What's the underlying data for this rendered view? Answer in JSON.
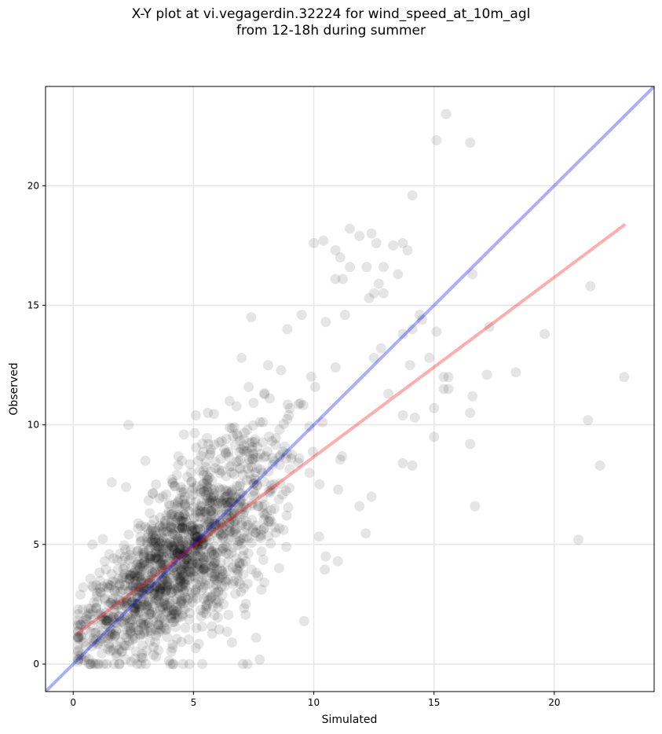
{
  "title_line1": "X-Y plot at vi.vegagerdin.32224 for wind_speed_at_10m_agl",
  "title_line2": "from 12-18h during summer",
  "chart_data": {
    "type": "scatter",
    "title": "X-Y plot at vi.vegagerdin.32224 for wind_speed_at_10m_agl from 12-18h during summer",
    "xlabel": "Simulated",
    "ylabel": "Observed",
    "xlim": [
      -1.15,
      24.15
    ],
    "ylim": [
      -1.15,
      24.15
    ],
    "xticks": [
      0,
      5,
      10,
      15,
      20
    ],
    "yticks": [
      0,
      5,
      10,
      15,
      20
    ],
    "xtick_labels": [
      "0",
      "5",
      "10",
      "15",
      "20"
    ],
    "ytick_labels": [
      "0",
      "5",
      "10",
      "15",
      "20"
    ],
    "grid": true,
    "point_color": "#000000",
    "point_alpha": 0.1,
    "lines": [
      {
        "kind": "identity",
        "x": [
          -1.15,
          24.15
        ],
        "y": [
          -1.15,
          24.15
        ],
        "color": "#0000ff",
        "alpha": 0.32
      },
      {
        "kind": "regression",
        "x": [
          0.2,
          22.9
        ],
        "y": [
          1.3,
          18.35
        ],
        "color": "#ff0000",
        "alpha": 0.32
      }
    ],
    "points_outliers": [
      {
        "x": 15.5,
        "y": 23.0
      },
      {
        "x": 15.1,
        "y": 21.9
      },
      {
        "x": 16.5,
        "y": 21.8
      },
      {
        "x": 14.1,
        "y": 19.6
      },
      {
        "x": 11.5,
        "y": 18.2
      },
      {
        "x": 12.4,
        "y": 18.0
      },
      {
        "x": 11.9,
        "y": 17.9
      },
      {
        "x": 10.0,
        "y": 17.6
      },
      {
        "x": 10.4,
        "y": 17.7
      },
      {
        "x": 12.6,
        "y": 17.6
      },
      {
        "x": 13.3,
        "y": 17.5
      },
      {
        "x": 13.7,
        "y": 17.6
      },
      {
        "x": 13.9,
        "y": 17.3
      },
      {
        "x": 10.9,
        "y": 17.3
      },
      {
        "x": 11.1,
        "y": 17.0
      },
      {
        "x": 11.5,
        "y": 16.6
      },
      {
        "x": 12.2,
        "y": 16.6
      },
      {
        "x": 12.9,
        "y": 16.6
      },
      {
        "x": 10.9,
        "y": 16.1
      },
      {
        "x": 11.2,
        "y": 16.1
      },
      {
        "x": 13.5,
        "y": 16.3
      },
      {
        "x": 16.6,
        "y": 16.3
      },
      {
        "x": 12.7,
        "y": 15.9
      },
      {
        "x": 21.5,
        "y": 15.8
      },
      {
        "x": 12.5,
        "y": 15.5
      },
      {
        "x": 12.9,
        "y": 15.5
      },
      {
        "x": 12.3,
        "y": 15.3
      },
      {
        "x": 14.5,
        "y": 14.4
      },
      {
        "x": 17.3,
        "y": 14.1
      },
      {
        "x": 19.6,
        "y": 13.8
      },
      {
        "x": 15.1,
        "y": 13.9
      },
      {
        "x": 13.7,
        "y": 13.8
      },
      {
        "x": 14.1,
        "y": 14.0
      },
      {
        "x": 14.8,
        "y": 12.8
      },
      {
        "x": 15.4,
        "y": 12.0
      },
      {
        "x": 15.6,
        "y": 12.0
      },
      {
        "x": 17.2,
        "y": 12.1
      },
      {
        "x": 18.4,
        "y": 12.2
      },
      {
        "x": 16.6,
        "y": 11.2
      },
      {
        "x": 22.9,
        "y": 12.0
      },
      {
        "x": 15.4,
        "y": 11.5
      },
      {
        "x": 15.6,
        "y": 11.5
      },
      {
        "x": 14.0,
        "y": 12.5
      },
      {
        "x": 15.0,
        "y": 10.7
      },
      {
        "x": 16.5,
        "y": 10.5
      },
      {
        "x": 13.7,
        "y": 10.4
      },
      {
        "x": 14.2,
        "y": 10.3
      },
      {
        "x": 15.0,
        "y": 9.5
      },
      {
        "x": 16.5,
        "y": 9.2
      },
      {
        "x": 21.4,
        "y": 10.2
      },
      {
        "x": 13.7,
        "y": 8.4
      },
      {
        "x": 14.1,
        "y": 8.3
      },
      {
        "x": 21.9,
        "y": 8.3
      },
      {
        "x": 16.7,
        "y": 6.6
      },
      {
        "x": 21.0,
        "y": 5.2
      },
      {
        "x": 14.4,
        "y": 14.6
      },
      {
        "x": 13.1,
        "y": 11.3
      },
      {
        "x": 12.5,
        "y": 12.8
      },
      {
        "x": 12.8,
        "y": 13.2
      },
      {
        "x": 11.3,
        "y": 14.6
      },
      {
        "x": 10.5,
        "y": 14.3
      },
      {
        "x": 9.5,
        "y": 14.6
      },
      {
        "x": 8.9,
        "y": 14.0
      },
      {
        "x": 7.4,
        "y": 14.5
      },
      {
        "x": 2.3,
        "y": 10.0
      },
      {
        "x": 6.6,
        "y": 0.9
      },
      {
        "x": 7.6,
        "y": 1.1
      },
      {
        "x": 1.0,
        "y": 0.0
      },
      {
        "x": 1.7,
        "y": 0.0
      },
      {
        "x": 0.3,
        "y": 2.9
      },
      {
        "x": 0.8,
        "y": 5.0
      },
      {
        "x": 1.6,
        "y": 7.6
      },
      {
        "x": 2.2,
        "y": 7.4
      },
      {
        "x": 3.0,
        "y": 8.5
      },
      {
        "x": 4.6,
        "y": 9.6
      },
      {
        "x": 5.1,
        "y": 10.4
      },
      {
        "x": 5.6,
        "y": 10.5
      },
      {
        "x": 6.5,
        "y": 11.0
      },
      {
        "x": 7.0,
        "y": 12.8
      },
      {
        "x": 8.1,
        "y": 12.5
      },
      {
        "x": 9.6,
        "y": 1.8
      },
      {
        "x": 10.5,
        "y": 4.5
      },
      {
        "x": 11.0,
        "y": 4.3
      },
      {
        "x": 11.9,
        "y": 6.6
      },
      {
        "x": 12.4,
        "y": 7.0
      }
    ],
    "points_cluster": {
      "count": 1500,
      "x_range": [
        0.2,
        12.8
      ],
      "y_range": [
        0.0,
        14.0
      ],
      "center": [
        4.8,
        5.0
      ],
      "note_density": "dense cloud concentrated around x≈2–7, y≈1–8"
    }
  }
}
